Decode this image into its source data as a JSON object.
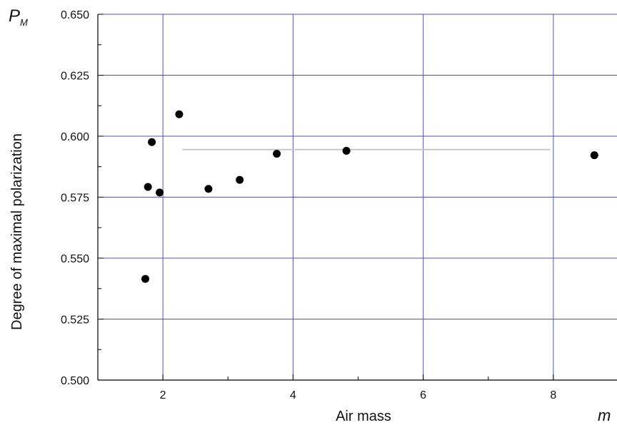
{
  "chart_data": {
    "type": "scatter",
    "title": "",
    "xlabel": "Air mass",
    "ylabel": "Degree of maximal polarization",
    "y_symbol": "P",
    "y_symbol_sub": "M",
    "x_symbol": "m",
    "xlim": [
      1.0,
      9.0
    ],
    "ylim": [
      0.5,
      0.65
    ],
    "x_ticks": [
      2,
      4,
      6,
      8
    ],
    "x_tick_labels": [
      "2",
      "4",
      "6",
      "8"
    ],
    "y_ticks": [
      0.5,
      0.525,
      0.55,
      0.575,
      0.6,
      0.625,
      0.65
    ],
    "y_tick_labels": [
      "0.500",
      "0.525",
      "0.550",
      "0.575",
      "0.600",
      "0.625",
      "0.650"
    ],
    "grid": true,
    "grid_color": "#5050c8",
    "marker_color": "#000000",
    "line_color": "#c8c8c8",
    "series": [
      {
        "values": [
          {
            "x": 1.73,
            "y": 0.5415
          },
          {
            "x": 1.77,
            "y": 0.5792
          },
          {
            "x": 1.83,
            "y": 0.5976
          },
          {
            "x": 1.95,
            "y": 0.5769
          },
          {
            "x": 2.25,
            "y": 0.609
          },
          {
            "x": 2.7,
            "y": 0.5784
          },
          {
            "x": 3.18,
            "y": 0.5821
          },
          {
            "x": 3.75,
            "y": 0.5928
          },
          {
            "x": 4.82,
            "y": 0.594
          },
          {
            "x": 8.63,
            "y": 0.5922
          }
        ]
      }
    ],
    "reference_line": {
      "x_start": 2.3,
      "x_end": 7.95,
      "y": 0.5945
    }
  }
}
